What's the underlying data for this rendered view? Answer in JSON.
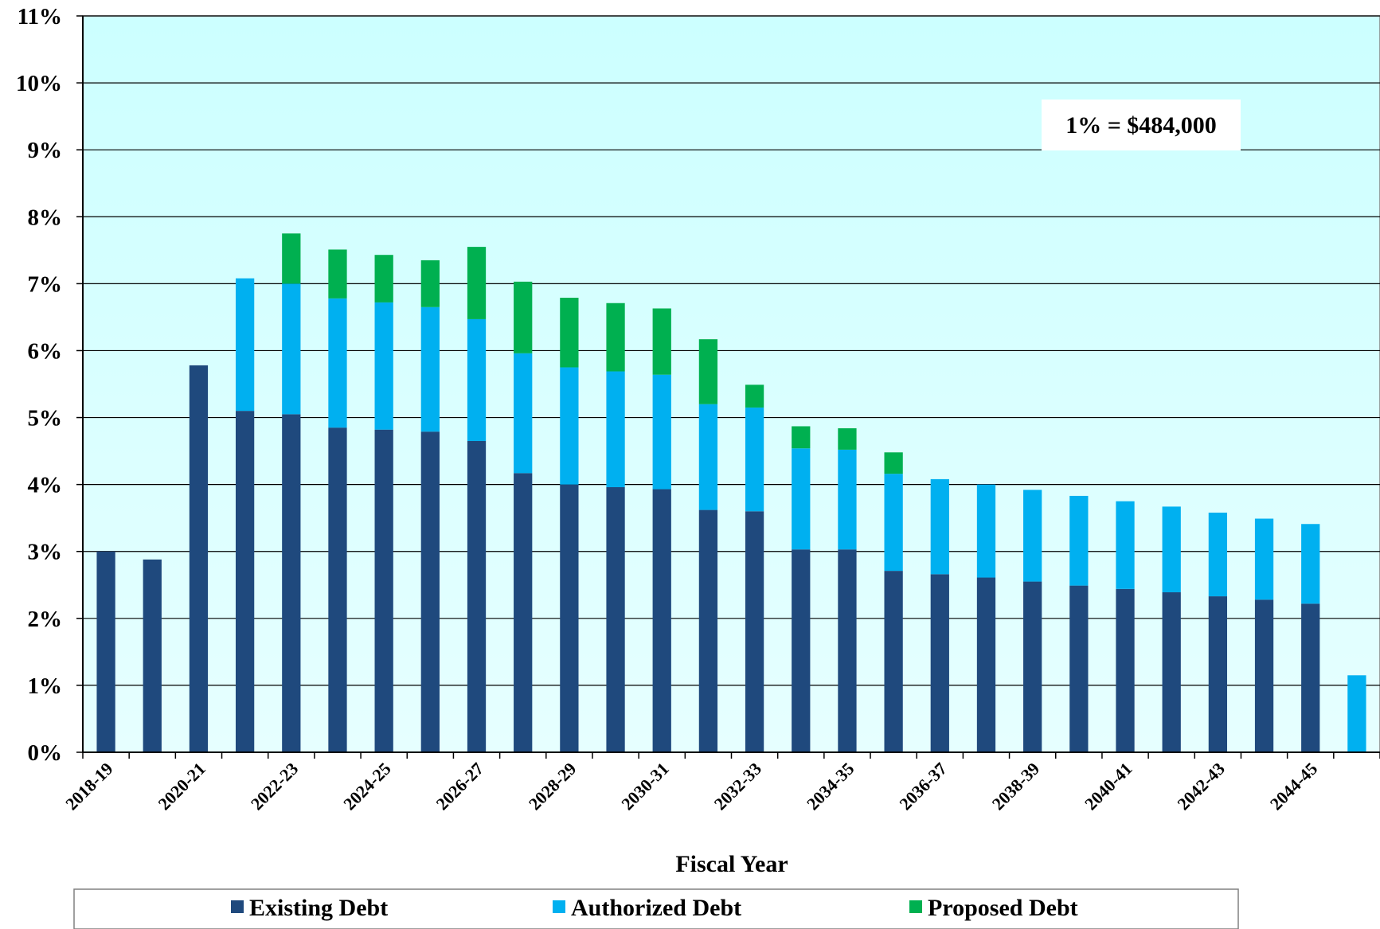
{
  "chart_data": {
    "type": "bar",
    "stacked": true,
    "xlabel": "Fiscal Year",
    "ylabel": "",
    "ylim": [
      0,
      11
    ],
    "y_ticks": [
      "0%",
      "1%",
      "2%",
      "3%",
      "4%",
      "5%",
      "6%",
      "7%",
      "8%",
      "9%",
      "10%",
      "11%"
    ],
    "x_tick_labels": [
      "2018-19",
      "2020-21",
      "2022-23",
      "2024-25",
      "2026-27",
      "2028-29",
      "2030-31",
      "2032-33",
      "2034-35",
      "2036-37",
      "2038-39",
      "2040-41",
      "2042-43",
      "2044-45"
    ],
    "categories": [
      "2018-19",
      "2019-20",
      "2020-21",
      "2021-22",
      "2022-23",
      "2023-24",
      "2024-25",
      "2025-26",
      "2026-27",
      "2027-28",
      "2028-29",
      "2029-30",
      "2030-31",
      "2031-32",
      "2032-33",
      "2033-34",
      "2034-35",
      "2035-36",
      "2036-37",
      "2037-38",
      "2038-39",
      "2039-40",
      "2040-41",
      "2041-42",
      "2042-43",
      "2043-44",
      "2044-45",
      "2045-46"
    ],
    "series": [
      {
        "name": "Existing Debt",
        "color": "#1F497D",
        "values": [
          3.0,
          2.88,
          5.78,
          5.1,
          5.05,
          4.85,
          4.82,
          4.79,
          4.65,
          4.17,
          4.0,
          3.96,
          3.93,
          3.62,
          3.6,
          3.03,
          3.03,
          2.71,
          2.66,
          2.61,
          2.55,
          2.49,
          2.44,
          2.39,
          2.33,
          2.28,
          2.22,
          0
        ]
      },
      {
        "name": "Authorized Debt",
        "color": "#00B0F0",
        "values": [
          0,
          0,
          0,
          1.98,
          1.95,
          1.93,
          1.9,
          1.86,
          1.82,
          1.79,
          1.75,
          1.73,
          1.71,
          1.58,
          1.55,
          1.51,
          1.49,
          1.45,
          1.42,
          1.39,
          1.37,
          1.34,
          1.31,
          1.28,
          1.25,
          1.21,
          1.19,
          1.15
        ]
      },
      {
        "name": "Proposed Debt",
        "color": "#00B050",
        "values": [
          0,
          0,
          0,
          0,
          0.75,
          0.73,
          0.71,
          0.7,
          1.08,
          1.07,
          1.04,
          1.02,
          0.99,
          0.97,
          0.34,
          0.33,
          0.32,
          0.32,
          0,
          0,
          0,
          0,
          0,
          0,
          0,
          0,
          0,
          0
        ]
      }
    ],
    "annotation": "1% = $484,000",
    "legend_placement": "bottom",
    "grid": true,
    "plot_background": [
      "#CCFFFF",
      "#E6FFFF"
    ]
  }
}
